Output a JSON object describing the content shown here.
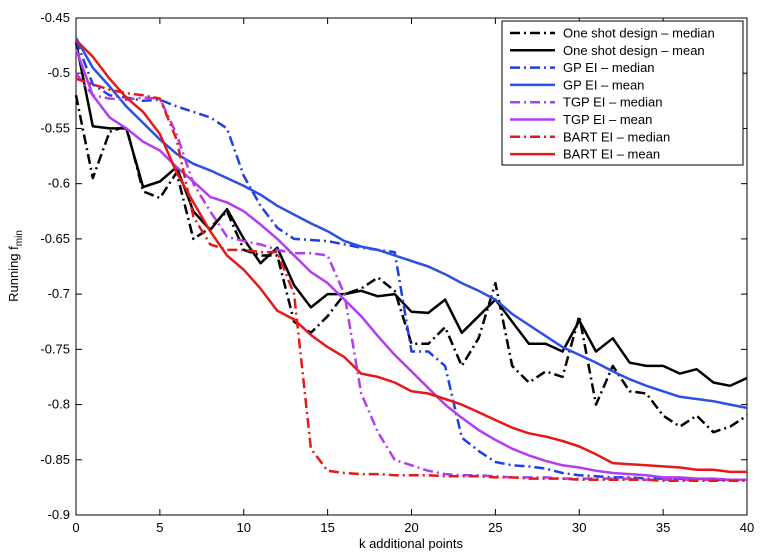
{
  "chart_data": {
    "type": "line",
    "title": "",
    "xlabel": "k additional points",
    "ylabel": "Running f",
    "ylabel_subscript": "min",
    "xlim": [
      0,
      40
    ],
    "ylim": [
      -0.9,
      -0.45
    ],
    "xticks": [
      0,
      5,
      10,
      15,
      20,
      25,
      30,
      35,
      40
    ],
    "yticks": [
      -0.9,
      -0.85,
      -0.8,
      -0.75,
      -0.7,
      -0.65,
      -0.6,
      -0.55,
      -0.5,
      -0.45
    ],
    "grid": false,
    "legend_position": "top-right",
    "x": [
      0,
      1,
      2,
      3,
      4,
      5,
      6,
      7,
      8,
      9,
      10,
      11,
      12,
      13,
      14,
      15,
      16,
      17,
      18,
      19,
      20,
      21,
      22,
      23,
      24,
      25,
      26,
      27,
      28,
      29,
      30,
      31,
      32,
      33,
      34,
      35,
      36,
      37,
      38,
      39,
      40
    ],
    "series": [
      {
        "name": "One shot design – median",
        "color": "#000000",
        "dash": "dashdot",
        "values": [
          -0.52,
          -0.595,
          -0.553,
          -0.548,
          -0.607,
          -0.613,
          -0.59,
          -0.65,
          -0.64,
          -0.625,
          -0.66,
          -0.665,
          -0.665,
          -0.725,
          -0.735,
          -0.72,
          -0.7,
          -0.695,
          -0.685,
          -0.697,
          -0.745,
          -0.745,
          -0.73,
          -0.765,
          -0.74,
          -0.69,
          -0.765,
          -0.78,
          -0.77,
          -0.775,
          -0.72,
          -0.8,
          -0.765,
          -0.788,
          -0.79,
          -0.81,
          -0.82,
          -0.81,
          -0.825,
          -0.82,
          -0.81
        ]
      },
      {
        "name": "One shot design – mean",
        "color": "#000000",
        "dash": "solid",
        "values": [
          -0.472,
          -0.548,
          -0.55,
          -0.55,
          -0.603,
          -0.598,
          -0.585,
          -0.625,
          -0.642,
          -0.623,
          -0.65,
          -0.672,
          -0.658,
          -0.692,
          -0.712,
          -0.7,
          -0.7,
          -0.697,
          -0.702,
          -0.7,
          -0.716,
          -0.717,
          -0.705,
          -0.735,
          -0.72,
          -0.705,
          -0.725,
          -0.745,
          -0.745,
          -0.752,
          -0.724,
          -0.752,
          -0.74,
          -0.762,
          -0.765,
          -0.765,
          -0.772,
          -0.768,
          -0.78,
          -0.783,
          -0.776
        ]
      },
      {
        "name": "GP EI – median",
        "color": "#1f3fe6",
        "dash": "dashdot",
        "values": [
          -0.47,
          -0.51,
          -0.52,
          -0.522,
          -0.525,
          -0.524,
          -0.53,
          -0.535,
          -0.54,
          -0.55,
          -0.593,
          -0.62,
          -0.64,
          -0.65,
          -0.651,
          -0.652,
          -0.655,
          -0.658,
          -0.66,
          -0.662,
          -0.752,
          -0.752,
          -0.765,
          -0.83,
          -0.842,
          -0.852,
          -0.855,
          -0.856,
          -0.858,
          -0.862,
          -0.864,
          -0.865,
          -0.866,
          -0.866,
          -0.867,
          -0.867,
          -0.867,
          -0.867,
          -0.868,
          -0.868,
          -0.868
        ]
      },
      {
        "name": "GP EI – mean",
        "color": "#2a50e6",
        "dash": "solid",
        "values": [
          -0.468,
          -0.495,
          -0.512,
          -0.53,
          -0.545,
          -0.56,
          -0.573,
          -0.582,
          -0.588,
          -0.595,
          -0.602,
          -0.61,
          -0.62,
          -0.628,
          -0.636,
          -0.643,
          -0.652,
          -0.657,
          -0.66,
          -0.665,
          -0.67,
          -0.675,
          -0.682,
          -0.69,
          -0.697,
          -0.705,
          -0.718,
          -0.728,
          -0.738,
          -0.748,
          -0.755,
          -0.762,
          -0.77,
          -0.777,
          -0.783,
          -0.788,
          -0.793,
          -0.795,
          -0.797,
          -0.8,
          -0.803
        ]
      },
      {
        "name": "TGP EI – median",
        "color": "#b43cf0",
        "dash": "dashdot",
        "values": [
          -0.5,
          -0.52,
          -0.523,
          -0.524,
          -0.522,
          -0.523,
          -0.555,
          -0.6,
          -0.625,
          -0.648,
          -0.652,
          -0.655,
          -0.66,
          -0.663,
          -0.663,
          -0.665,
          -0.7,
          -0.79,
          -0.825,
          -0.85,
          -0.855,
          -0.86,
          -0.863,
          -0.864,
          -0.864,
          -0.865,
          -0.866,
          -0.866,
          -0.866,
          -0.867,
          -0.867,
          -0.867,
          -0.867,
          -0.867,
          -0.868,
          -0.868,
          -0.868,
          -0.868,
          -0.868,
          -0.868,
          -0.868
        ]
      },
      {
        "name": "TGP EI – mean",
        "color": "#b43cf0",
        "dash": "solid",
        "values": [
          -0.478,
          -0.52,
          -0.54,
          -0.55,
          -0.562,
          -0.57,
          -0.585,
          -0.598,
          -0.612,
          -0.617,
          -0.625,
          -0.637,
          -0.65,
          -0.665,
          -0.68,
          -0.69,
          -0.705,
          -0.72,
          -0.738,
          -0.755,
          -0.77,
          -0.785,
          -0.8,
          -0.812,
          -0.823,
          -0.832,
          -0.84,
          -0.846,
          -0.851,
          -0.855,
          -0.857,
          -0.86,
          -0.862,
          -0.863,
          -0.864,
          -0.866,
          -0.866,
          -0.867,
          -0.867,
          -0.868,
          -0.868
        ]
      },
      {
        "name": "BART EI – median",
        "color": "#e61919",
        "dash": "dashdot",
        "values": [
          -0.505,
          -0.51,
          -0.515,
          -0.518,
          -0.52,
          -0.523,
          -0.56,
          -0.63,
          -0.655,
          -0.66,
          -0.66,
          -0.662,
          -0.662,
          -0.7,
          -0.84,
          -0.86,
          -0.862,
          -0.863,
          -0.863,
          -0.864,
          -0.864,
          -0.864,
          -0.865,
          -0.865,
          -0.865,
          -0.866,
          -0.866,
          -0.867,
          -0.867,
          -0.867,
          -0.868,
          -0.868,
          -0.868,
          -0.868,
          -0.868,
          -0.869,
          -0.869,
          -0.869,
          -0.869,
          -0.869,
          -0.869
        ]
      },
      {
        "name": "BART EI – mean",
        "color": "#e61919",
        "dash": "solid",
        "values": [
          -0.47,
          -0.485,
          -0.505,
          -0.522,
          -0.535,
          -0.555,
          -0.59,
          -0.617,
          -0.643,
          -0.665,
          -0.678,
          -0.695,
          -0.715,
          -0.723,
          -0.737,
          -0.748,
          -0.757,
          -0.772,
          -0.775,
          -0.78,
          -0.788,
          -0.79,
          -0.795,
          -0.8,
          -0.807,
          -0.814,
          -0.821,
          -0.826,
          -0.829,
          -0.833,
          -0.838,
          -0.845,
          -0.853,
          -0.854,
          -0.855,
          -0.856,
          -0.857,
          -0.859,
          -0.859,
          -0.861,
          -0.861
        ]
      }
    ]
  }
}
